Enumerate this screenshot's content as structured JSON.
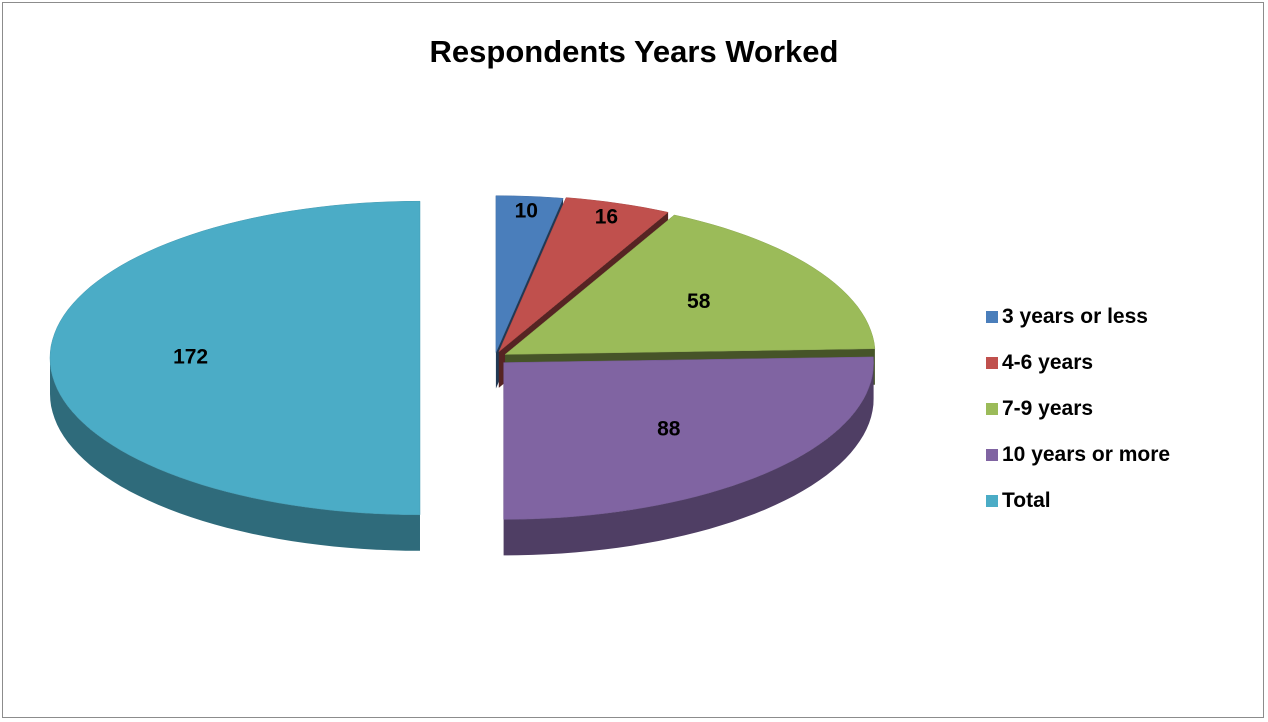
{
  "chart_data": {
    "type": "pie",
    "title": "Respondents Years Worked",
    "categories": [
      "3 years or less",
      "4-6 years",
      "7-9 years",
      "10 years or more",
      "Total"
    ],
    "values": [
      10,
      16,
      58,
      88,
      172
    ],
    "colors": [
      "#4a7ebb",
      "#c0504d",
      "#9bbb59",
      "#8064a2",
      "#4bacc6"
    ],
    "style": "3d-exploded",
    "legend": "right",
    "data_labels": true
  }
}
